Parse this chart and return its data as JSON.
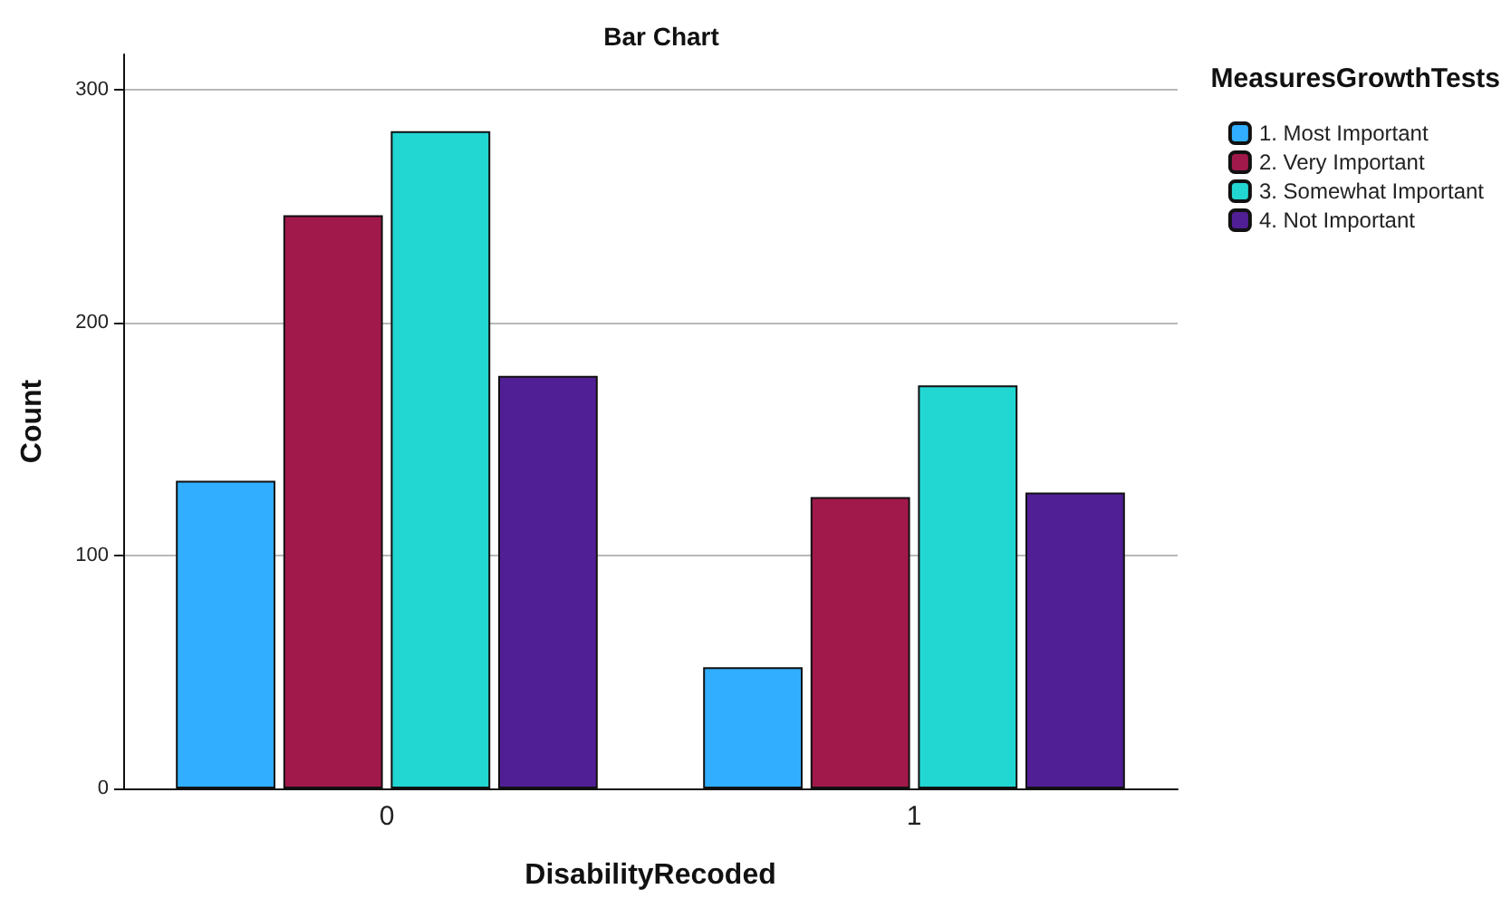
{
  "chart_data": {
    "type": "bar",
    "title": "Bar Chart",
    "xlabel": "DisabilityRecoded",
    "ylabel": "Count",
    "legend_title": "MeasuresGrowthTests",
    "categories": [
      "0",
      "1"
    ],
    "series": [
      {
        "name": "1. Most Important",
        "color": "#31aeff",
        "values": [
          132,
          52
        ]
      },
      {
        "name": "2. Very Important",
        "color": "#a1194b",
        "values": [
          246,
          125
        ]
      },
      {
        "name": "3. Somewhat Important",
        "color": "#22d6d2",
        "values": [
          282,
          173
        ]
      },
      {
        "name": "4. Not Important",
        "color": "#511f95",
        "values": [
          177,
          127
        ]
      }
    ],
    "ylim": [
      0,
      315
    ],
    "yticks": [
      0,
      100,
      200,
      300
    ],
    "grid": "y",
    "legend": "top right"
  }
}
